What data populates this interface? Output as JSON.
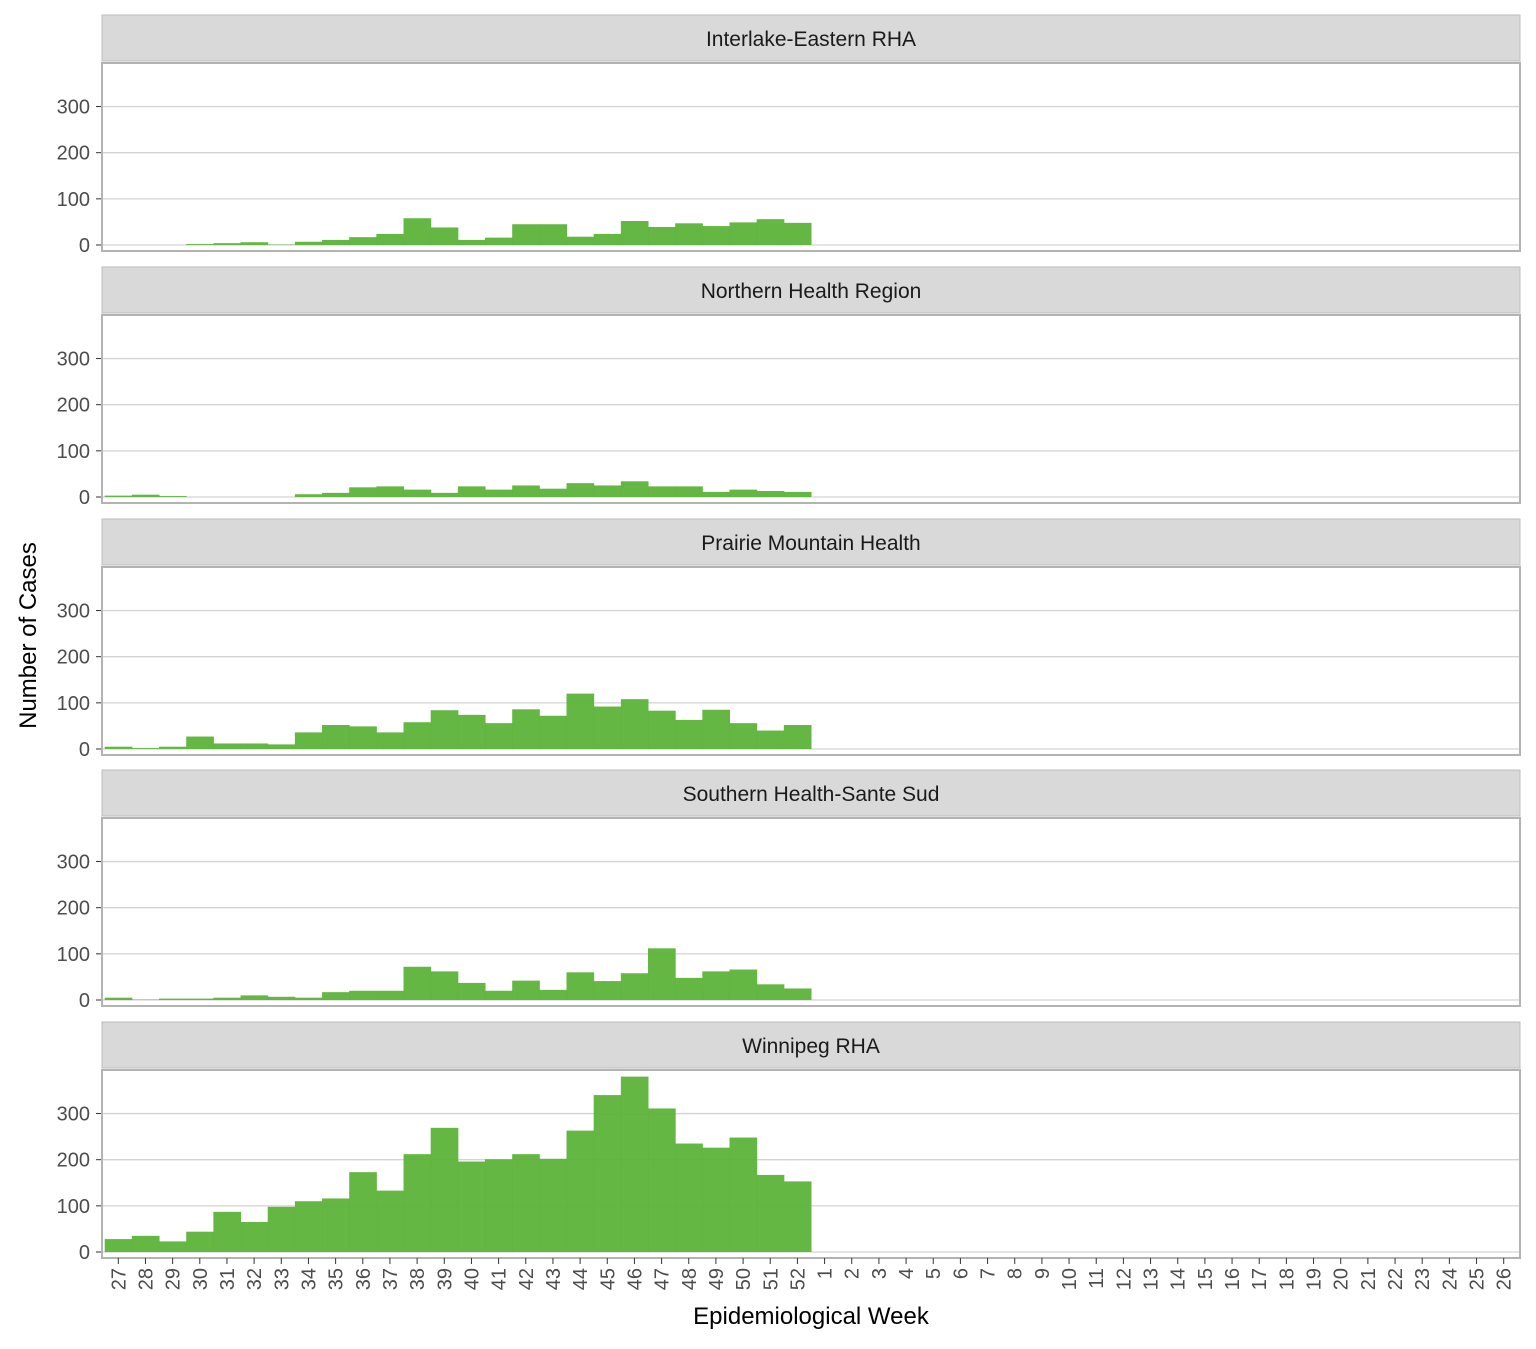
{
  "chart_data": {
    "type": "bar",
    "layout": "faceted-vertical",
    "xlabel": "Epidemiological Week",
    "ylabel": "Number of Cases",
    "ylim": [
      0,
      390
    ],
    "yticks": [
      0,
      100,
      200,
      300
    ],
    "grid": true,
    "bar_color": "#5db33a",
    "strip_color": "#d9d9d9",
    "categories": [
      "27",
      "28",
      "29",
      "30",
      "31",
      "32",
      "33",
      "34",
      "35",
      "36",
      "37",
      "38",
      "39",
      "40",
      "41",
      "42",
      "43",
      "44",
      "45",
      "46",
      "47",
      "48",
      "49",
      "50",
      "51",
      "52",
      "1",
      "2",
      "3",
      "4",
      "5",
      "6",
      "7",
      "8",
      "9",
      "10",
      "11",
      "12",
      "13",
      "14",
      "15",
      "16",
      "17",
      "18",
      "19",
      "20",
      "21",
      "22",
      "23",
      "24",
      "25",
      "26"
    ],
    "panels": [
      {
        "title": "Interlake-Eastern RHA",
        "values": [
          0,
          0,
          0,
          2,
          4,
          6,
          1,
          7,
          11,
          17,
          24,
          58,
          38,
          11,
          16,
          45,
          45,
          18,
          24,
          52,
          39,
          47,
          41,
          49,
          56,
          48
        ]
      },
      {
        "title": "Northern Health Region",
        "values": [
          3,
          5,
          2,
          0,
          0,
          0,
          0,
          6,
          9,
          21,
          23,
          16,
          9,
          23,
          16,
          25,
          18,
          30,
          25,
          34,
          23,
          23,
          11,
          16,
          13,
          11
        ]
      },
      {
        "title": "Prairie Mountain Health",
        "values": [
          5,
          2,
          5,
          27,
          12,
          12,
          10,
          36,
          52,
          49,
          36,
          58,
          84,
          74,
          56,
          86,
          72,
          120,
          92,
          108,
          83,
          63,
          85,
          56,
          40,
          52
        ]
      },
      {
        "title": "Southern Health-Sante Sud",
        "values": [
          5,
          1,
          3,
          3,
          5,
          10,
          7,
          5,
          17,
          20,
          20,
          72,
          62,
          37,
          20,
          42,
          22,
          60,
          41,
          58,
          112,
          48,
          62,
          66,
          34,
          25
        ]
      },
      {
        "title": "Winnipeg RHA",
        "values": [
          28,
          35,
          23,
          44,
          87,
          65,
          98,
          110,
          116,
          173,
          133,
          212,
          269,
          196,
          201,
          212,
          202,
          263,
          340,
          380,
          311,
          235,
          226,
          248,
          167,
          153
        ]
      }
    ]
  }
}
